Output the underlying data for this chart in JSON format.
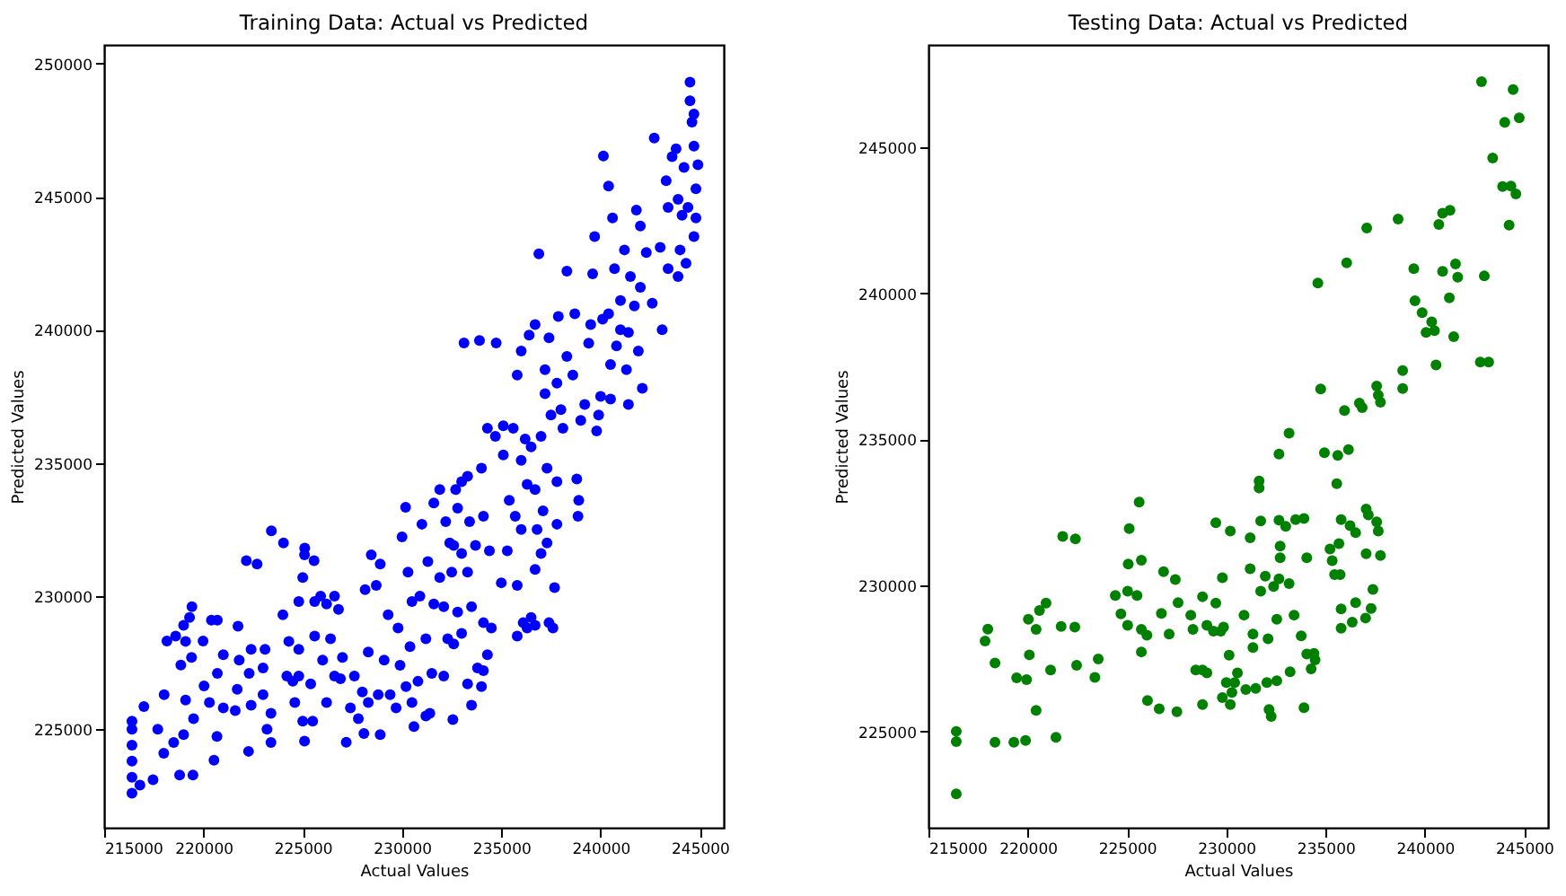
{
  "chart_data": [
    {
      "type": "scatter",
      "title": "Training Data: Actual vs Predicted",
      "xlabel": "Actual Values",
      "ylabel": "Predicted Values",
      "xlim": [
        215000,
        246200
      ],
      "ylim": [
        221300,
        250700
      ],
      "xticks": [
        215000,
        220000,
        225000,
        230000,
        235000,
        240000,
        245000
      ],
      "yticks": [
        225000,
        230000,
        235000,
        240000,
        245000,
        250000
      ],
      "grid": false,
      "marker": "circle",
      "series": [
        {
          "color": "#0000ff",
          "x": [
            216400,
            216400,
            216400,
            216400,
            216400,
            216400,
            217000,
            216800,
            217460,
            217700,
            218000,
            218500,
            219000,
            219500,
            218160,
            218600,
            219000,
            219300,
            219420,
            218020,
            218800,
            219470,
            218860,
            219100,
            219100,
            219400,
            219980,
            220400,
            220700,
            220030,
            220680,
            220530,
            220300,
            221000,
            221000,
            220700,
            221600,
            221740,
            221800,
            221700,
            222300,
            222270,
            222400,
            222400,
            222160,
            222700,
            223100,
            223000,
            223000,
            223200,
            223400,
            223400,
            223420,
            224030,
            224000,
            224200,
            224500,
            224300,
            224800,
            225090,
            225100,
            225000,
            224800,
            224800,
            224600,
            225000,
            225090,
            225400,
            225500,
            225600,
            225600,
            225570,
            225900,
            226200,
            226400,
            226600,
            226000,
            226200,
            226600,
            226800,
            226900,
            227000,
            227190,
            227400,
            227600,
            227800,
            228000,
            228300,
            228300,
            228140,
            228450,
            228900,
            228700,
            228080,
            228900,
            228800,
            229100,
            229300,
            229400,
            229700,
            229800,
            229900,
            230000,
            230180,
            230300,
            230500,
            230400,
            230200,
            230500,
            230600,
            230800,
            230900,
            231000,
            231300,
            231200,
            231500,
            231200,
            231400,
            231600,
            231900,
            231600,
            231900,
            232200,
            232400,
            232100,
            232300,
            232100,
            232560,
            232600,
            232800,
            232500,
            232600,
            232800,
            232700,
            233000,
            233300,
            233000,
            233300,
            233000,
            233300,
            233500,
            233800,
            233500,
            233700,
            233400,
            234000,
            234300,
            233120,
            233900,
            234740,
            234700,
            234100,
            234400,
            234100,
            234300,
            234000,
            234100,
            234500,
            235000,
            235300,
            235400,
            235100,
            235100,
            235600,
            235700,
            235800,
            235800,
            236100,
            236300,
            236500,
            236700,
            236000,
            236300,
            236000,
            236700,
            236500,
            236200,
            235800,
            236000,
            236400,
            236700,
            236890,
            236700,
            236800,
            237000,
            237100,
            237300,
            237000,
            237200,
            237400,
            237870,
            237800,
            237200,
            237500,
            237400,
            237600,
            237680,
            237300,
            237800,
            237800,
            238100,
            238000,
            238300,
            238600,
            238300,
            238700,
            238800,
            238860,
            238900,
            239000,
            239200,
            239400,
            239600,
            239700,
            239500,
            239800,
            239900,
            240000,
            240100,
            240140,
            240400,
            240400,
            240600,
            240700,
            240500,
            240500,
            240800,
            241000,
            241200,
            241000,
            241300,
            241400,
            241400,
            241500,
            241700,
            241800,
            241900,
            242000,
            242000,
            242100,
            242300,
            242700,
            242600,
            243000,
            243100,
            243300,
            243400,
            243400,
            243600,
            243800,
            243900,
            243900,
            244000,
            244100,
            244200,
            244300,
            244400,
            244500,
            244500,
            244600,
            244700,
            244700,
            244800,
            244900,
            244800,
            244700
          ],
          "values": [
            222600,
            223200,
            223800,
            224400,
            225000,
            225300,
            225850,
            222900,
            223100,
            225000,
            224100,
            224500,
            224800,
            225400,
            228310,
            228500,
            228900,
            229200,
            229600,
            226300,
            223280,
            223280,
            227410,
            228300,
            226100,
            227700,
            228310,
            229100,
            229100,
            226630,
            224730,
            223840,
            226000,
            225800,
            227800,
            227100,
            225700,
            228870,
            227600,
            226500,
            227100,
            224170,
            225900,
            228000,
            231330,
            231200,
            228000,
            227300,
            226300,
            225000,
            225600,
            224500,
            232450,
            232000,
            229300,
            227000,
            226800,
            228300,
            229800,
            231550,
            231800,
            230700,
            228000,
            227000,
            226000,
            225300,
            224550,
            226700,
            225300,
            228500,
            229800,
            231330,
            230000,
            229700,
            228400,
            230000,
            227600,
            226000,
            227000,
            229500,
            226900,
            227700,
            224510,
            225800,
            227000,
            225400,
            226400,
            226000,
            227900,
            230240,
            231550,
            231200,
            230400,
            224840,
            224800,
            226300,
            227600,
            229300,
            226300,
            225800,
            228800,
            227400,
            232220,
            233340,
            230900,
            229800,
            228100,
            226600,
            226000,
            225100,
            226800,
            230000,
            232700,
            231300,
            228400,
            227100,
            225500,
            225600,
            229700,
            230700,
            233500,
            234000,
            232800,
            232000,
            229600,
            228400,
            227000,
            225360,
            228200,
            229400,
            230900,
            231900,
            233300,
            234000,
            234300,
            234500,
            231600,
            230900,
            228600,
            226700,
            225900,
            227300,
            229600,
            231900,
            232800,
            234800,
            236300,
            239510,
            239600,
            239510,
            236000,
            233000,
            231700,
            229000,
            227800,
            226600,
            227200,
            228800,
            230500,
            231700,
            233600,
            235300,
            236400,
            236300,
            233000,
            230400,
            228500,
            229000,
            228800,
            229200,
            228900,
            232500,
            234200,
            235100,
            234000,
            235600,
            235900,
            238300,
            239200,
            239800,
            240200,
            242850,
            231000,
            232500,
            231600,
            233200,
            234800,
            236000,
            238500,
            239700,
            240500,
            238000,
            237600,
            236800,
            229000,
            228800,
            230320,
            232000,
            232700,
            234300,
            236300,
            237000,
            239000,
            238300,
            242200,
            240600,
            234400,
            233000,
            233600,
            236600,
            237200,
            239500,
            242100,
            243500,
            240200,
            236200,
            236800,
            237500,
            240400,
            246530,
            245400,
            240600,
            244200,
            242300,
            237400,
            238700,
            239400,
            241100,
            243000,
            240000,
            238500,
            237200,
            239900,
            242000,
            240900,
            244500,
            239200,
            243900,
            241600,
            237800,
            242900,
            247200,
            241000,
            243100,
            240000,
            245600,
            244600,
            242300,
            246500,
            246800,
            244900,
            242000,
            243000,
            244300,
            246100,
            242500,
            244600,
            249300,
            248600,
            247800,
            248100,
            243500,
            245300,
            246200,
            244200,
            246900
          ]
        }
      ]
    },
    {
      "type": "scatter",
      "title": "Testing Data: Actual vs Predicted",
      "xlabel": "Actual Values",
      "ylabel": "Predicted Values",
      "xlim": [
        215000,
        246200
      ],
      "ylim": [
        221700,
        248500
      ],
      "xticks": [
        215000,
        220000,
        225000,
        230000,
        235000,
        240000,
        245000
      ],
      "yticks": [
        225000,
        230000,
        235000,
        240000,
        245000
      ],
      "grid": false,
      "marker": "circle",
      "series": [
        {
          "color": "#008000",
          "x": [
            216400,
            216400,
            216400,
            217850,
            217990,
            218350,
            218350,
            219300,
            219440,
            219940,
            219890,
            220030,
            220080,
            220420,
            220420,
            220590,
            220920,
            221150,
            221420,
            221760,
            221680,
            222370,
            222400,
            222460,
            223380,
            223550,
            224410,
            224690,
            225030,
            225030,
            225110,
            225060,
            225500,
            225610,
            225720,
            225720,
            225720,
            226000,
            226030,
            226620,
            226730,
            226840,
            227120,
            227430,
            227510,
            227570,
            228210,
            228320,
            228460,
            228800,
            228800,
            228800,
            229020,
            229020,
            229350,
            229470,
            229470,
            229720,
            229800,
            229860,
            229800,
            230000,
            230140,
            230200,
            230200,
            230280,
            230420,
            230560,
            230890,
            230980,
            231200,
            231200,
            231340,
            231340,
            231480,
            231650,
            231650,
            231730,
            231730,
            231960,
            232040,
            232100,
            232150,
            232260,
            232380,
            232540,
            232540,
            232650,
            232710,
            232710,
            232650,
            232650,
            232990,
            233160,
            233160,
            233210,
            233410,
            233490,
            233770,
            233910,
            233910,
            234050,
            234050,
            234270,
            234410,
            234470,
            234610,
            234750,
            234940,
            235220,
            235330,
            235450,
            235560,
            235610,
            235670,
            235730,
            235780,
            235780,
            235780,
            235950,
            236060,
            236150,
            236230,
            236340,
            236510,
            236510,
            236700,
            236840,
            237070,
            237040,
            237040,
            237010,
            237150,
            237290,
            237380,
            237570,
            237570,
            237650,
            237760,
            237760,
            237650,
            238650,
            238880,
            238880,
            239440,
            239500,
            239860,
            240060,
            240340,
            240480,
            240560,
            240700,
            240890,
            240890,
            241230,
            241260,
            241450,
            241540,
            241650,
            242850,
            242990,
            242790,
            243210,
            243410,
            243910,
            244020,
            244240,
            244330,
            244440,
            244580,
            244750
          ],
          "values": [
            225000,
            224650,
            222860,
            228090,
            228500,
            227340,
            224630,
            224630,
            226830,
            226770,
            224690,
            228840,
            227620,
            228490,
            225720,
            229140,
            229390,
            227100,
            224800,
            231670,
            228590,
            228570,
            231590,
            227260,
            226850,
            227480,
            229650,
            229020,
            228630,
            229800,
            231940,
            230730,
            229650,
            232850,
            230860,
            228490,
            227720,
            228290,
            226060,
            225770,
            229040,
            230470,
            228330,
            230200,
            225670,
            229410,
            228980,
            228490,
            227100,
            227100,
            229610,
            225920,
            228630,
            227000,
            228430,
            232140,
            229390,
            228430,
            230260,
            228570,
            226160,
            226670,
            227610,
            231860,
            225920,
            226330,
            226670,
            227000,
            228980,
            226430,
            230570,
            231630,
            228330,
            227870,
            226470,
            233570,
            233330,
            232200,
            229800,
            230310,
            226670,
            228170,
            225750,
            225510,
            229960,
            228840,
            226730,
            230220,
            231340,
            230940,
            234490,
            232230,
            232020,
            235210,
            230060,
            227040,
            228980,
            232250,
            228270,
            232290,
            225810,
            227650,
            230940,
            227140,
            227670,
            227450,
            240350,
            236720,
            234540,
            231240,
            230840,
            230370,
            233480,
            234450,
            231430,
            230370,
            232250,
            229190,
            228530,
            235980,
            241040,
            234650,
            232040,
            228740,
            231800,
            229410,
            236240,
            236080,
            242230,
            232610,
            231080,
            228880,
            232410,
            229210,
            229860,
            232170,
            236820,
            236510,
            236270,
            231020,
            231860,
            242540,
            237350,
            236740,
            240840,
            239740,
            239330,
            238660,
            239020,
            238720,
            237540,
            242350,
            242740,
            240750,
            239840,
            242840,
            238510,
            241000,
            240550,
            247240,
            240590,
            237640,
            237640,
            244630,
            243650,
            245850,
            242330,
            243670,
            246970,
            243400,
            246000
          ]
        }
      ]
    }
  ]
}
